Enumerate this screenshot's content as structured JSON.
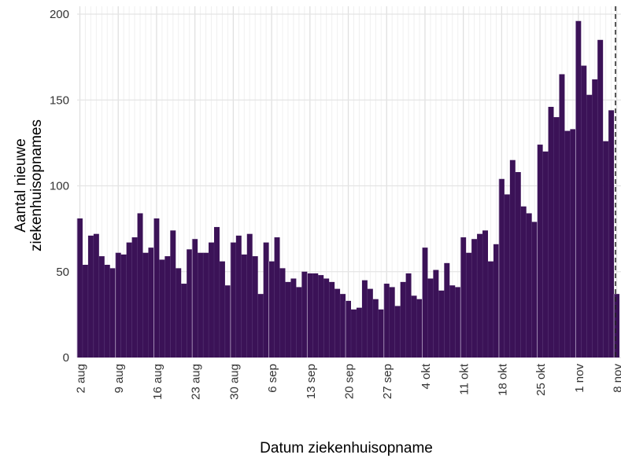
{
  "chart_data": {
    "type": "bar",
    "x_label": "Datum ziekenhuisopname",
    "y_label": [
      "Aantal nieuwe",
      "ziekenhuisopnames"
    ],
    "color": "#3b1257",
    "grid": true,
    "ylim": [
      0,
      200
    ],
    "yticks": [
      0,
      50,
      100,
      150,
      200
    ],
    "categories": [
      "2 aug",
      null,
      null,
      null,
      null,
      null,
      null,
      "9 aug",
      null,
      null,
      null,
      null,
      null,
      null,
      "16 aug",
      null,
      null,
      null,
      null,
      null,
      null,
      "23 aug",
      null,
      null,
      null,
      null,
      null,
      null,
      "30 aug",
      null,
      null,
      null,
      null,
      null,
      null,
      "6 sep",
      null,
      null,
      null,
      null,
      null,
      null,
      "13 sep",
      null,
      null,
      null,
      null,
      null,
      null,
      "20 sep",
      null,
      null,
      null,
      null,
      null,
      null,
      "27 sep",
      null,
      null,
      null,
      null,
      null,
      null,
      "4 okt",
      null,
      null,
      null,
      null,
      null,
      null,
      "11 okt",
      null,
      null,
      null,
      null,
      null,
      null,
      "18 okt",
      null,
      null,
      null,
      null,
      null,
      null,
      "25 okt",
      null,
      null,
      null,
      null,
      null,
      null,
      "1 nov",
      null,
      null,
      null,
      null,
      null,
      null,
      "8 nov"
    ],
    "values": [
      81,
      54,
      71,
      72,
      59,
      54,
      52,
      61,
      60,
      67,
      70,
      84,
      61,
      64,
      81,
      57,
      59,
      74,
      52,
      43,
      63,
      69,
      61,
      61,
      67,
      76,
      56,
      42,
      67,
      71,
      60,
      72,
      59,
      37,
      67,
      56,
      70,
      52,
      44,
      46,
      41,
      50,
      49,
      49,
      48,
      46,
      44,
      40,
      37,
      33,
      28,
      29,
      45,
      40,
      34,
      28,
      43,
      41,
      30,
      44,
      49,
      36,
      34,
      64,
      46,
      51,
      39,
      55,
      42,
      41,
      70,
      61,
      69,
      72,
      74,
      56,
      66,
      104,
      95,
      115,
      108,
      88,
      84,
      79,
      124,
      120,
      146,
      140,
      165,
      132,
      133,
      196,
      170,
      153,
      162,
      185,
      126,
      144,
      37
    ]
  }
}
